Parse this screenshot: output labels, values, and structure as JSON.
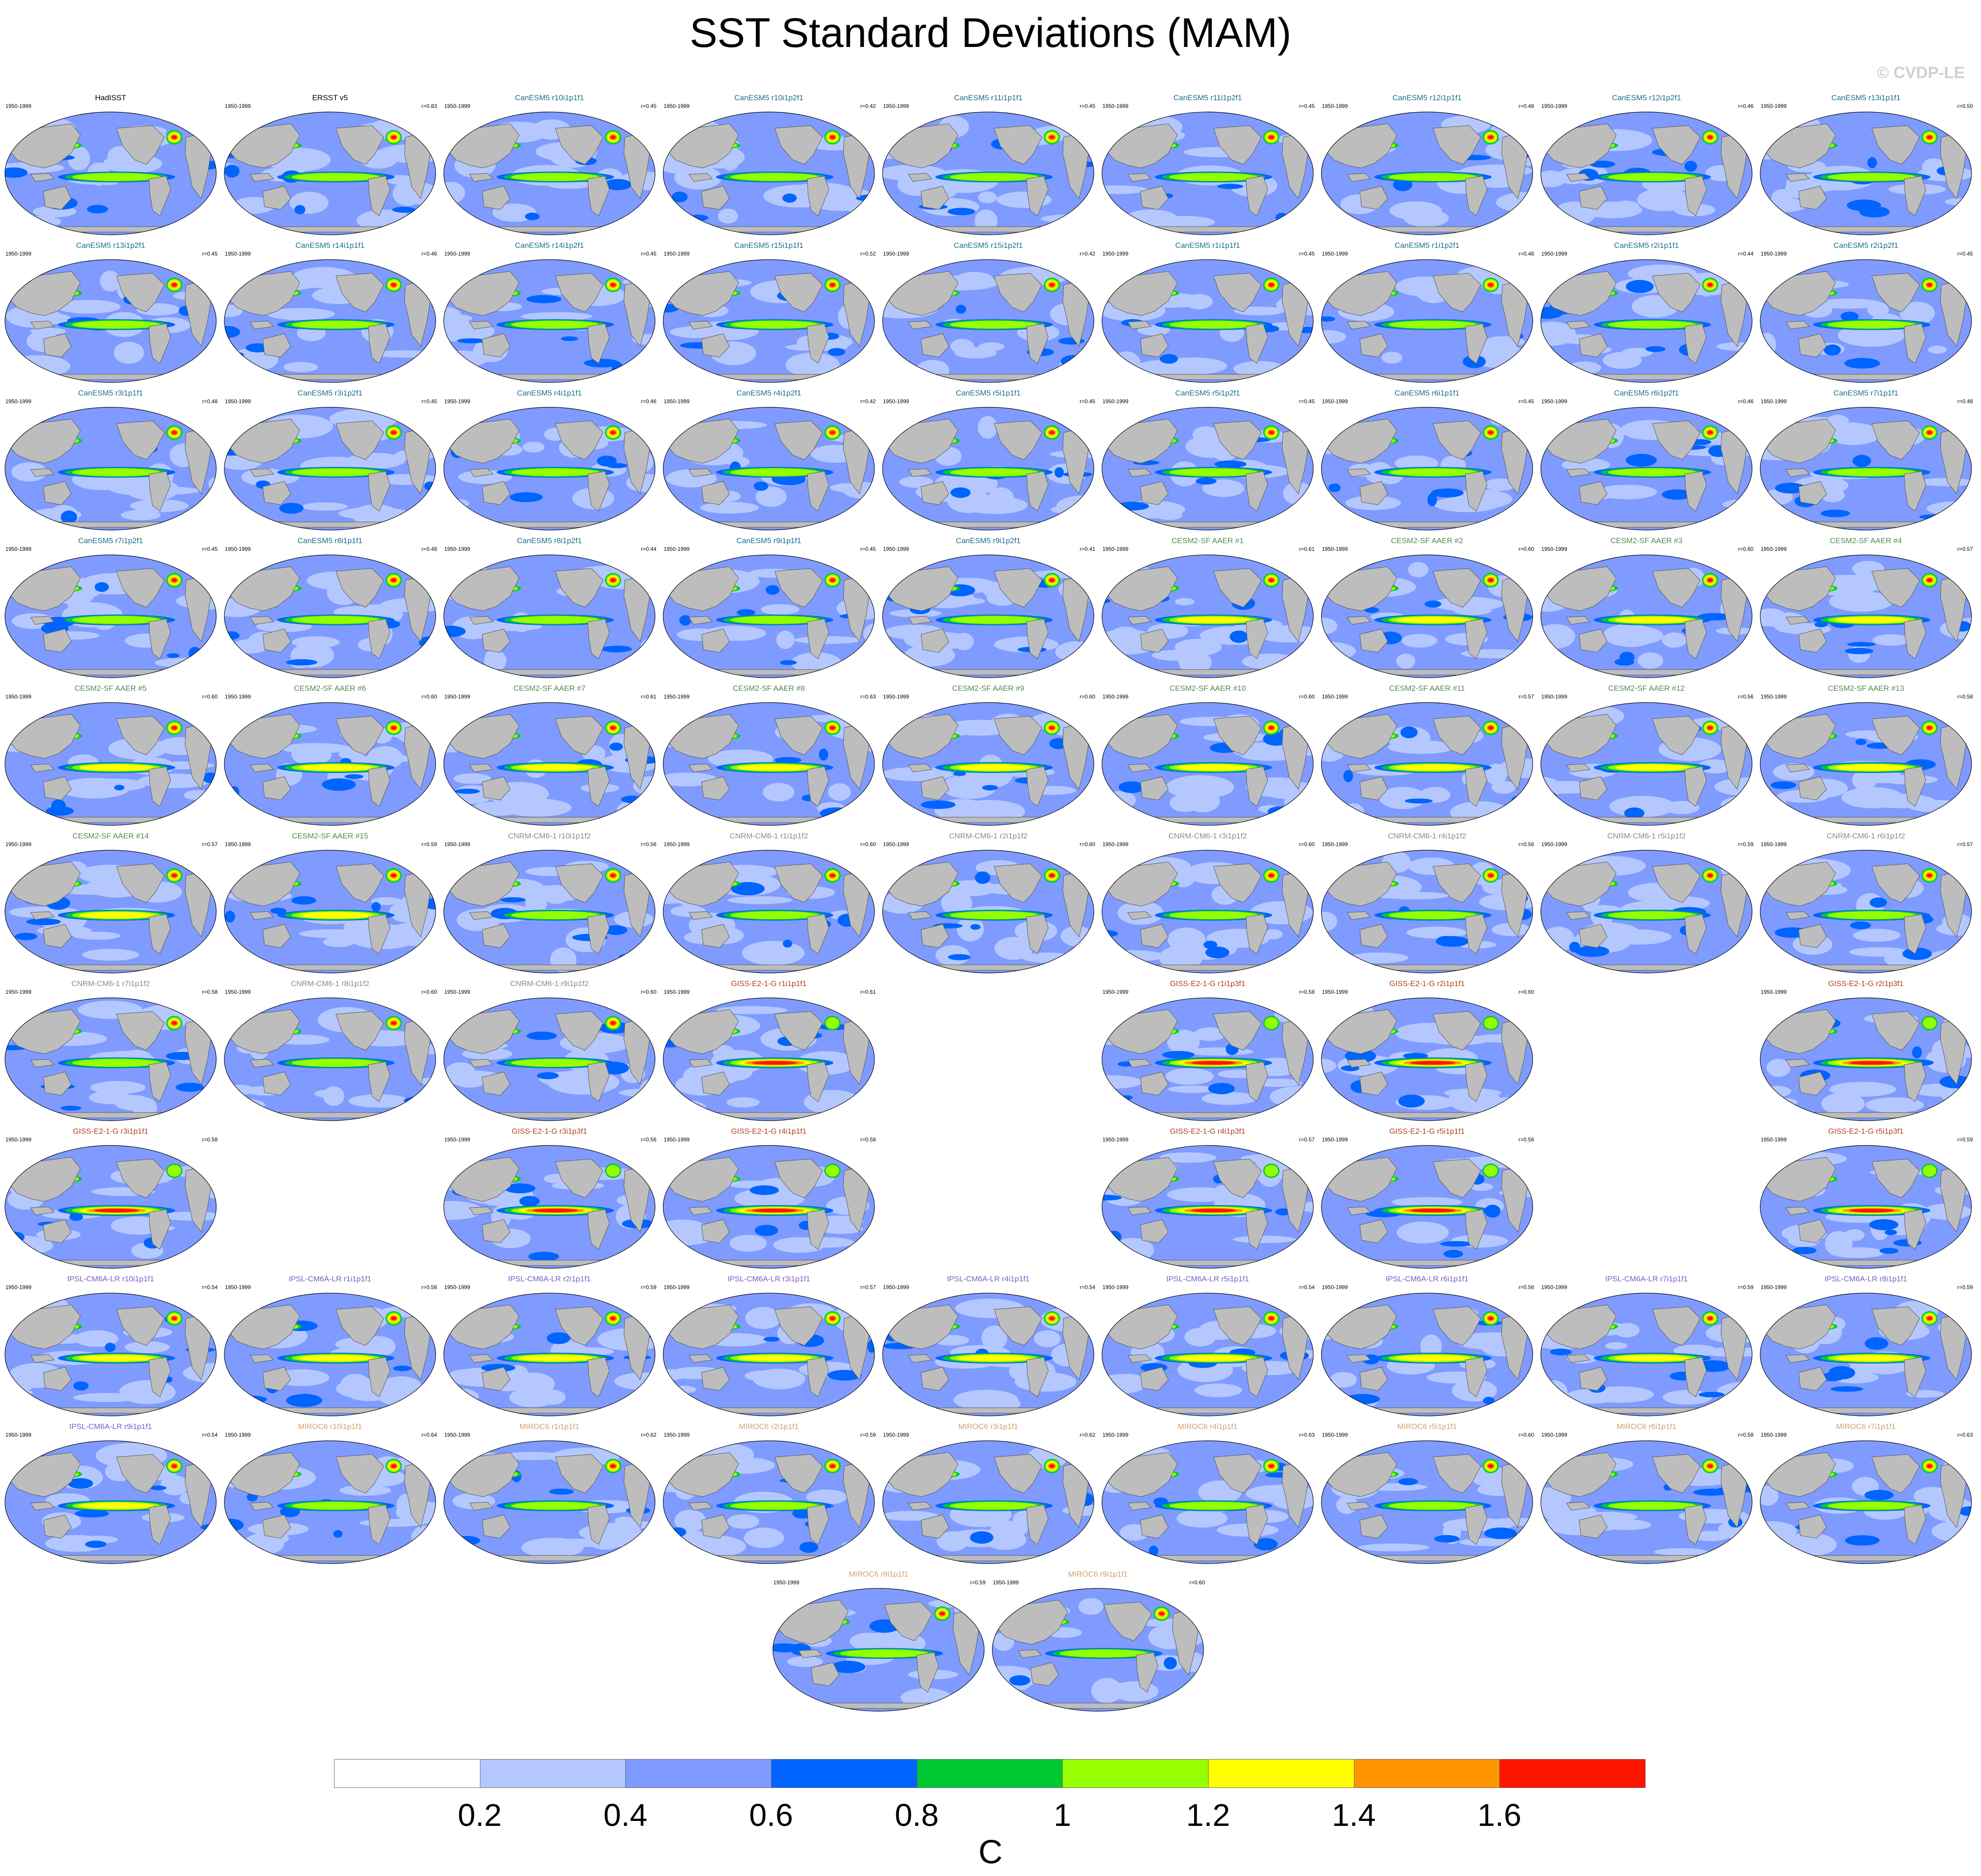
{
  "title": "SST Standard Deviations (MAM)",
  "watermark": "© CVDP-LE",
  "chart_data": {
    "type": "heatmap",
    "title": "SST Standard Deviations (MAM)",
    "unit": "C",
    "colorbar": {
      "ticks": [
        "0.2",
        "0.4",
        "0.6",
        "0.8",
        "1",
        "1.2",
        "1.4",
        "1.6"
      ],
      "bins": [
        {
          "range": "<0.2",
          "color": "#ffffff"
        },
        {
          "range": "0.2-0.4",
          "color": "#b4c8ff"
        },
        {
          "range": "0.4-0.6",
          "color": "#7f9bff"
        },
        {
          "range": "0.6-0.8",
          "color": "#0064ff"
        },
        {
          "range": "0.8-1",
          "color": "#00c832"
        },
        {
          "range": "1-1.2",
          "color": "#96ff00"
        },
        {
          "range": "1.2-1.4",
          "color": "#ffff00"
        },
        {
          "range": "1.4-1.6",
          "color": "#ff9600"
        },
        {
          "range": ">1.6",
          "color": "#ff1400"
        }
      ]
    },
    "panels": [
      {
        "row": 1,
        "col": 1,
        "title": "HadISST",
        "years": "1950-1999",
        "r": "",
        "group": "obs"
      },
      {
        "row": 1,
        "col": 2,
        "title": "ERSST v5",
        "years": "1950-1999",
        "r": "r=0.83",
        "group": "obs"
      },
      {
        "row": 1,
        "col": 3,
        "title": "CanESM5 r10i1p1f1",
        "years": "1950-1999",
        "r": "r=0.45",
        "group": "canesm"
      },
      {
        "row": 1,
        "col": 4,
        "title": "CanESM5 r10i1p2f1",
        "years": "1950-1999",
        "r": "r=0.42",
        "group": "canesm"
      },
      {
        "row": 1,
        "col": 5,
        "title": "CanESM5 r11i1p1f1",
        "years": "1950-1999",
        "r": "r=0.45",
        "group": "canesm"
      },
      {
        "row": 1,
        "col": 6,
        "title": "CanESM5 r11i1p2f1",
        "years": "1950-1999",
        "r": "r=0.45",
        "group": "canesm"
      },
      {
        "row": 1,
        "col": 7,
        "title": "CanESM5 r12i1p1f1",
        "years": "1950-1999",
        "r": "r=0.48",
        "group": "canesm"
      },
      {
        "row": 1,
        "col": 8,
        "title": "CanESM5 r12i1p2f1",
        "years": "1950-1999",
        "r": "r=0.46",
        "group": "canesm"
      },
      {
        "row": 1,
        "col": 9,
        "title": "CanESM5 r13i1p1f1",
        "years": "1950-1999",
        "r": "r=0.50",
        "group": "canesm"
      },
      {
        "row": 2,
        "col": 1,
        "title": "CanESM5 r13i1p2f1",
        "years": "1950-1999",
        "r": "r=0.45",
        "group": "canesm"
      },
      {
        "row": 2,
        "col": 2,
        "title": "CanESM5 r14i1p1f1",
        "years": "1950-1999",
        "r": "r=0.46",
        "group": "canesm"
      },
      {
        "row": 2,
        "col": 3,
        "title": "CanESM5 r14i1p2f1",
        "years": "1950-1999",
        "r": "r=0.45",
        "group": "canesm"
      },
      {
        "row": 2,
        "col": 4,
        "title": "CanESM5 r15i1p1f1",
        "years": "1950-1999",
        "r": "r=0.52",
        "group": "canesm"
      },
      {
        "row": 2,
        "col": 5,
        "title": "CanESM5 r15i1p2f1",
        "years": "1950-1999",
        "r": "r=0.42",
        "group": "canesm"
      },
      {
        "row": 2,
        "col": 6,
        "title": "CanESM5 r1i1p1f1",
        "years": "1950-1999",
        "r": "r=0.45",
        "group": "canesm"
      },
      {
        "row": 2,
        "col": 7,
        "title": "CanESM5 r1i1p2f1",
        "years": "1950-1999",
        "r": "r=0.48",
        "group": "canesm"
      },
      {
        "row": 2,
        "col": 8,
        "title": "CanESM5 r2i1p1f1",
        "years": "1950-1999",
        "r": "r=0.44",
        "group": "canesm"
      },
      {
        "row": 2,
        "col": 9,
        "title": "CanESM5 r2i1p2f1",
        "years": "1950-1999",
        "r": "r=0.45",
        "group": "canesm"
      },
      {
        "row": 3,
        "col": 1,
        "title": "CanESM5 r3i1p1f1",
        "years": "1950-1999",
        "r": "r=0.48",
        "group": "canesm"
      },
      {
        "row": 3,
        "col": 2,
        "title": "CanESM5 r3i1p2f1",
        "years": "1950-1999",
        "r": "r=0.45",
        "group": "canesm"
      },
      {
        "row": 3,
        "col": 3,
        "title": "CanESM5 r4i1p1f1",
        "years": "1950-1999",
        "r": "r=0.46",
        "group": "canesm"
      },
      {
        "row": 3,
        "col": 4,
        "title": "CanESM5 r4i1p2f1",
        "years": "1950-1999",
        "r": "r=0.42",
        "group": "canesm"
      },
      {
        "row": 3,
        "col": 5,
        "title": "CanESM5 r5i1p1f1",
        "years": "1950-1999",
        "r": "r=0.45",
        "group": "canesm"
      },
      {
        "row": 3,
        "col": 6,
        "title": "CanESM5 r5i1p2f1",
        "years": "1950-1999",
        "r": "r=0.45",
        "group": "canesm"
      },
      {
        "row": 3,
        "col": 7,
        "title": "CanESM5 r6i1p1f1",
        "years": "1950-1999",
        "r": "r=0.45",
        "group": "canesm"
      },
      {
        "row": 3,
        "col": 8,
        "title": "CanESM5 r6i1p2f1",
        "years": "1950-1999",
        "r": "r=0.46",
        "group": "canesm"
      },
      {
        "row": 3,
        "col": 9,
        "title": "CanESM5 r7i1p1f1",
        "years": "1950-1999",
        "r": "r=0.48",
        "group": "canesm"
      },
      {
        "row": 4,
        "col": 1,
        "title": "CanESM5 r7i1p2f1",
        "years": "1950-1999",
        "r": "r=0.45",
        "group": "canesm"
      },
      {
        "row": 4,
        "col": 2,
        "title": "CanESM5 r8i1p1f1",
        "years": "1950-1999",
        "r": "r=0.48",
        "group": "canesm"
      },
      {
        "row": 4,
        "col": 3,
        "title": "CanESM5 r8i1p2f1",
        "years": "1950-1999",
        "r": "r=0.44",
        "group": "canesm"
      },
      {
        "row": 4,
        "col": 4,
        "title": "CanESM5 r9i1p1f1",
        "years": "1950-1999",
        "r": "r=0.45",
        "group": "canesm"
      },
      {
        "row": 4,
        "col": 5,
        "title": "CanESM5 r9i1p2f1",
        "years": "1950-1999",
        "r": "r=0.41",
        "group": "canesm"
      },
      {
        "row": 4,
        "col": 6,
        "title": "CESM2-SF AAER #1",
        "years": "1950-1999",
        "r": "r=0.61",
        "group": "cesm2"
      },
      {
        "row": 4,
        "col": 7,
        "title": "CESM2-SF AAER #2",
        "years": "1950-1999",
        "r": "r=0.60",
        "group": "cesm2"
      },
      {
        "row": 4,
        "col": 8,
        "title": "CESM2-SF AAER #3",
        "years": "1950-1999",
        "r": "r=0.60",
        "group": "cesm2"
      },
      {
        "row": 4,
        "col": 9,
        "title": "CESM2-SF AAER #4",
        "years": "1950-1999",
        "r": "r=0.57",
        "group": "cesm2"
      },
      {
        "row": 5,
        "col": 1,
        "title": "CESM2-SF AAER #5",
        "years": "1950-1999",
        "r": "r=0.60",
        "group": "cesm2"
      },
      {
        "row": 5,
        "col": 2,
        "title": "CESM2-SF AAER #6",
        "years": "1950-1999",
        "r": "r=0.60",
        "group": "cesm2"
      },
      {
        "row": 5,
        "col": 3,
        "title": "CESM2-SF AAER #7",
        "years": "1950-1999",
        "r": "r=0.61",
        "group": "cesm2"
      },
      {
        "row": 5,
        "col": 4,
        "title": "CESM2-SF AAER #8",
        "years": "1950-1999",
        "r": "r=0.63",
        "group": "cesm2"
      },
      {
        "row": 5,
        "col": 5,
        "title": "CESM2-SF AAER #9",
        "years": "1950-1999",
        "r": "r=0.60",
        "group": "cesm2"
      },
      {
        "row": 5,
        "col": 6,
        "title": "CESM2-SF AAER #10",
        "years": "1950-1999",
        "r": "r=0.60",
        "group": "cesm2"
      },
      {
        "row": 5,
        "col": 7,
        "title": "CESM2-SF AAER #11",
        "years": "1950-1999",
        "r": "r=0.57",
        "group": "cesm2"
      },
      {
        "row": 5,
        "col": 8,
        "title": "CESM2-SF AAER #12",
        "years": "1950-1999",
        "r": "r=0.56",
        "group": "cesm2"
      },
      {
        "row": 5,
        "col": 9,
        "title": "CESM2-SF AAER #13",
        "years": "1950-1999",
        "r": "r=0.58",
        "group": "cesm2"
      },
      {
        "row": 6,
        "col": 1,
        "title": "CESM2-SF AAER #14",
        "years": "1950-1999",
        "r": "r=0.57",
        "group": "cesm2"
      },
      {
        "row": 6,
        "col": 2,
        "title": "CESM2-SF AAER #15",
        "years": "1950-1999",
        "r": "r=0.59",
        "group": "cesm2"
      },
      {
        "row": 6,
        "col": 3,
        "title": "CNRM-CM6-1 r10i1p1f2",
        "years": "1950-1999",
        "r": "r=0.56",
        "group": "cnrm"
      },
      {
        "row": 6,
        "col": 4,
        "title": "CNRM-CM6-1 r1i1p1f2",
        "years": "1950-1999",
        "r": "r=0.60",
        "group": "cnrm"
      },
      {
        "row": 6,
        "col": 5,
        "title": "CNRM-CM6-1 r2i1p1f2",
        "years": "1950-1999",
        "r": "r=0.60",
        "group": "cnrm"
      },
      {
        "row": 6,
        "col": 6,
        "title": "CNRM-CM6-1 r3i1p1f2",
        "years": "1950-1999",
        "r": "r=0.60",
        "group": "cnrm"
      },
      {
        "row": 6,
        "col": 7,
        "title": "CNRM-CM6-1 r4i1p1f2",
        "years": "1950-1999",
        "r": "r=0.56",
        "group": "cnrm"
      },
      {
        "row": 6,
        "col": 8,
        "title": "CNRM-CM6-1 r5i1p1f2",
        "years": "1950-1999",
        "r": "r=0.59",
        "group": "cnrm"
      },
      {
        "row": 6,
        "col": 9,
        "title": "CNRM-CM6-1 r6i1p1f2",
        "years": "1950-1999",
        "r": "r=0.57",
        "group": "cnrm"
      },
      {
        "row": 7,
        "col": 1,
        "title": "CNRM-CM6-1 r7i1p1f2",
        "years": "1950-1999",
        "r": "r=0.58",
        "group": "cnrm"
      },
      {
        "row": 7,
        "col": 2,
        "title": "CNRM-CM6-1 r8i1p1f2",
        "years": "1950-1999",
        "r": "r=0.60",
        "group": "cnrm"
      },
      {
        "row": 7,
        "col": 3,
        "title": "CNRM-CM6-1 r9i1p1f2",
        "years": "1950-1999",
        "r": "r=0.60",
        "group": "cnrm"
      },
      {
        "row": 7,
        "col": 4,
        "title": "GISS-E2-1-G r1i1p1f1",
        "years": "1950-1999",
        "r": "r=0.61",
        "group": "giss"
      },
      {
        "row": 7,
        "col": 6,
        "title": "GISS-E2-1-G r1i1p3f1",
        "years": "1950-1999",
        "r": "r=0.58",
        "group": "giss"
      },
      {
        "row": 7,
        "col": 7,
        "title": "GISS-E2-1-G r2i1p1f1",
        "years": "1950-1999",
        "r": "r=0.60",
        "group": "giss"
      },
      {
        "row": 7,
        "col": 9,
        "title": "GISS-E2-1-G r2i1p3f1",
        "years": "1950-1999",
        "r": "",
        "group": "giss"
      },
      {
        "row": 8,
        "col": 1,
        "title": "GISS-E2-1-G r3i1p1f1",
        "years": "1950-1999",
        "r": "r=0.58",
        "group": "giss"
      },
      {
        "row": 8,
        "col": 3,
        "title": "GISS-E2-1-G r3i1p3f1",
        "years": "1950-1999",
        "r": "r=0.56",
        "group": "giss"
      },
      {
        "row": 8,
        "col": 4,
        "title": "GISS-E2-1-G r4i1p1f1",
        "years": "1950-1999",
        "r": "r=0.58",
        "group": "giss"
      },
      {
        "row": 8,
        "col": 6,
        "title": "GISS-E2-1-G r4i1p3f1",
        "years": "1950-1999",
        "r": "r=0.57",
        "group": "giss"
      },
      {
        "row": 8,
        "col": 7,
        "title": "GISS-E2-1-G r5i1p1f1",
        "years": "1950-1999",
        "r": "r=0.56",
        "group": "giss"
      },
      {
        "row": 8,
        "col": 9,
        "title": "GISS-E2-1-G r5i1p3f1",
        "years": "1950-1999",
        "r": "r=0.59",
        "group": "giss"
      },
      {
        "row": 9,
        "col": 1,
        "title": "IPSL-CM6A-LR r10i1p1f1",
        "years": "1950-1999",
        "r": "r=0.54",
        "group": "ipsl"
      },
      {
        "row": 9,
        "col": 2,
        "title": "IPSL-CM6A-LR r1i1p1f1",
        "years": "1950-1999",
        "r": "r=0.58",
        "group": "ipsl"
      },
      {
        "row": 9,
        "col": 3,
        "title": "IPSL-CM6A-LR r2i1p1f1",
        "years": "1950-1999",
        "r": "r=0.59",
        "group": "ipsl"
      },
      {
        "row": 9,
        "col": 4,
        "title": "IPSL-CM6A-LR r3i1p1f1",
        "years": "1950-1999",
        "r": "r=0.57",
        "group": "ipsl"
      },
      {
        "row": 9,
        "col": 5,
        "title": "IPSL-CM6A-LR r4i1p1f1",
        "years": "1950-1999",
        "r": "r=0.54",
        "group": "ipsl"
      },
      {
        "row": 9,
        "col": 6,
        "title": "IPSL-CM6A-LR r5i1p1f1",
        "years": "1950-1999",
        "r": "r=0.54",
        "group": "ipsl"
      },
      {
        "row": 9,
        "col": 7,
        "title": "IPSL-CM6A-LR r6i1p1f1",
        "years": "1950-1999",
        "r": "r=0.56",
        "group": "ipsl"
      },
      {
        "row": 9,
        "col": 8,
        "title": "IPSL-CM6A-LR r7i1p1f1",
        "years": "1950-1999",
        "r": "r=0.59",
        "group": "ipsl"
      },
      {
        "row": 9,
        "col": 9,
        "title": "IPSL-CM6A-LR r8i1p1f1",
        "years": "1950-1999",
        "r": "r=0.59",
        "group": "ipsl"
      },
      {
        "row": 10,
        "col": 1,
        "title": "IPSL-CM6A-LR r9i1p1f1",
        "years": "1950-1999",
        "r": "r=0.54",
        "group": "ipsl"
      },
      {
        "row": 10,
        "col": 2,
        "title": "MIROC6 r10i1p1f1",
        "years": "1950-1999",
        "r": "r=0.64",
        "group": "miroc"
      },
      {
        "row": 10,
        "col": 3,
        "title": "MIROC6 r1i1p1f1",
        "years": "1950-1999",
        "r": "r=0.62",
        "group": "miroc"
      },
      {
        "row": 10,
        "col": 4,
        "title": "MIROC6 r2i1p1f1",
        "years": "1950-1999",
        "r": "r=0.59",
        "group": "miroc"
      },
      {
        "row": 10,
        "col": 5,
        "title": "MIROC6 r3i1p1f1",
        "years": "1950-1999",
        "r": "r=0.62",
        "group": "miroc"
      },
      {
        "row": 10,
        "col": 6,
        "title": "MIROC6 r4i1p1f1",
        "years": "1950-1999",
        "r": "r=0.63",
        "group": "miroc"
      },
      {
        "row": 10,
        "col": 7,
        "title": "MIROC6 r5i1p1f1",
        "years": "1950-1999",
        "r": "r=0.60",
        "group": "miroc"
      },
      {
        "row": 10,
        "col": 8,
        "title": "MIROC6 r6i1p1f1",
        "years": "1950-1999",
        "r": "r=0.58",
        "group": "miroc"
      },
      {
        "row": 10,
        "col": 9,
        "title": "MIROC6 r7i1p1f1",
        "years": "1950-1999",
        "r": "r=0.63",
        "group": "miroc"
      },
      {
        "row": 11,
        "col": 4.5,
        "title": "MIROC6 r8i1p1f1",
        "years": "1950-1999",
        "r": "r=0.59",
        "group": "miroc"
      },
      {
        "row": 11,
        "col": 5.5,
        "title": "MIROC6 r9i1p1f1",
        "years": "1950-1999",
        "r": "r=0.60",
        "group": "miroc"
      }
    ],
    "group_colors": {
      "obs": "#000000",
      "canesm": "#1a6e8c",
      "cesm2": "#4f8a4f",
      "cnrm": "#8a8a8a",
      "giss": "#b0421a",
      "ipsl": "#7a5cc8",
      "miroc": "#d2a06e"
    }
  }
}
